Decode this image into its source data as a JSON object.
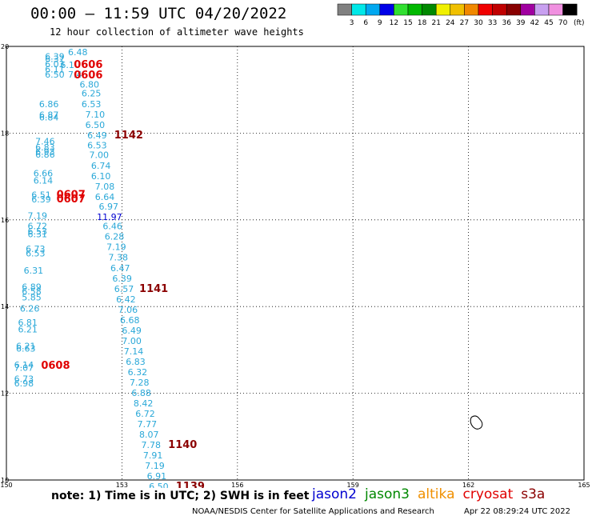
{
  "header": {
    "title": "00:00 – 11:59 UTC 04/20/2022",
    "subtitle": "12 hour collection of altimeter wave heights"
  },
  "legend": {
    "unit": "(ft)",
    "bins": [
      {
        "label": "3",
        "color": "#808080"
      },
      {
        "label": "6",
        "color": "#00e8e8"
      },
      {
        "label": "9",
        "color": "#00a8f0"
      },
      {
        "label": "12",
        "color": "#0000e8"
      },
      {
        "label": "15",
        "color": "#30e030"
      },
      {
        "label": "18",
        "color": "#00b800"
      },
      {
        "label": "21",
        "color": "#008800"
      },
      {
        "label": "24",
        "color": "#f0f000"
      },
      {
        "label": "27",
        "color": "#f0c000"
      },
      {
        "label": "30",
        "color": "#f08800"
      },
      {
        "label": "33",
        "color": "#f00000"
      },
      {
        "label": "36",
        "color": "#c00000"
      },
      {
        "label": "39",
        "color": "#880000"
      },
      {
        "label": "42",
        "color": "#a000a0"
      },
      {
        "label": "45",
        "color": "#c8a0f0"
      },
      {
        "label": "70",
        "color": "#f090e0"
      },
      {
        "label": "",
        "color": "#000000"
      }
    ]
  },
  "map": {
    "lon_ticks": [
      "150",
      "153",
      "156",
      "159",
      "162",
      "165"
    ],
    "lat_ticks": [
      "20",
      "18",
      "16",
      "14",
      "12",
      "10"
    ],
    "lon_range": [
      150,
      165
    ],
    "lat_range": [
      10,
      20
    ],
    "island_lon": 162.2,
    "island_lat": 11.3,
    "colors": {
      "wave": "#2aa8d8",
      "wave_blue": "#0000d0",
      "cryosat": "#e00000",
      "s3a": "#8b0000"
    },
    "wave_labels": [
      {
        "t": "6.48",
        "lon": 151.6,
        "lat": 19.8
      },
      {
        "t": "6.39",
        "lon": 151.0,
        "lat": 19.7
      },
      {
        "t": "6.37",
        "lon": 151.0,
        "lat": 19.64
      },
      {
        "t": "6.03",
        "lon": 151.0,
        "lat": 19.52
      },
      {
        "t": "6.1",
        "lon": 151.4,
        "lat": 19.5
      },
      {
        "t": "6.11",
        "lon": 151.0,
        "lat": 19.4
      },
      {
        "t": "6.50",
        "lon": 151.0,
        "lat": 19.28
      },
      {
        "t": "7.4",
        "lon": 151.6,
        "lat": 19.28
      },
      {
        "t": "6.80",
        "lon": 151.9,
        "lat": 19.05
      },
      {
        "t": "6.25",
        "lon": 151.95,
        "lat": 18.85
      },
      {
        "t": "6.86",
        "lon": 150.85,
        "lat": 18.6
      },
      {
        "t": "6.53",
        "lon": 151.95,
        "lat": 18.6
      },
      {
        "t": "6.87",
        "lon": 150.85,
        "lat": 18.35
      },
      {
        "t": "6.84",
        "lon": 150.85,
        "lat": 18.29
      },
      {
        "t": "7.10",
        "lon": 152.05,
        "lat": 18.36
      },
      {
        "t": "6.50",
        "lon": 152.05,
        "lat": 18.12
      },
      {
        "t": "6.49",
        "lon": 152.1,
        "lat": 17.88
      },
      {
        "t": "7.46",
        "lon": 150.75,
        "lat": 17.74
      },
      {
        "t": "6.53",
        "lon": 152.1,
        "lat": 17.65
      },
      {
        "t": "6.83",
        "lon": 150.75,
        "lat": 17.6
      },
      {
        "t": "6.93",
        "lon": 150.75,
        "lat": 17.5
      },
      {
        "t": "6.86",
        "lon": 150.75,
        "lat": 17.44
      },
      {
        "t": "7.00",
        "lon": 152.15,
        "lat": 17.43
      },
      {
        "t": "6.74",
        "lon": 152.2,
        "lat": 17.18
      },
      {
        "t": "6.66",
        "lon": 150.7,
        "lat": 17.0
      },
      {
        "t": "6.10",
        "lon": 152.2,
        "lat": 16.94
      },
      {
        "t": "6.14",
        "lon": 150.7,
        "lat": 16.84
      },
      {
        "t": "7.08",
        "lon": 152.3,
        "lat": 16.7
      },
      {
        "t": "6.51",
        "lon": 150.65,
        "lat": 16.5
      },
      {
        "t": "6.64",
        "lon": 152.3,
        "lat": 16.46
      },
      {
        "t": "6.39",
        "lon": 150.65,
        "lat": 16.4
      },
      {
        "t": "6.97",
        "lon": 152.4,
        "lat": 16.24
      },
      {
        "t": "7.19",
        "lon": 150.55,
        "lat": 16.02
      },
      {
        "t": "6.72",
        "lon": 150.55,
        "lat": 15.78
      },
      {
        "t": "6.46",
        "lon": 152.5,
        "lat": 15.78
      },
      {
        "t": "6.53",
        "lon": 150.55,
        "lat": 15.66
      },
      {
        "t": "6.31",
        "lon": 150.55,
        "lat": 15.6
      },
      {
        "t": "6.28",
        "lon": 152.55,
        "lat": 15.54
      },
      {
        "t": "7.19",
        "lon": 152.6,
        "lat": 15.3
      },
      {
        "t": "6.73",
        "lon": 150.5,
        "lat": 15.26
      },
      {
        "t": "6.53",
        "lon": 150.5,
        "lat": 15.16
      },
      {
        "t": "7.38",
        "lon": 152.65,
        "lat": 15.06
      },
      {
        "t": "6.47",
        "lon": 152.7,
        "lat": 14.82
      },
      {
        "t": "6.31",
        "lon": 150.45,
        "lat": 14.76
      },
      {
        "t": "6.39",
        "lon": 152.75,
        "lat": 14.58
      },
      {
        "t": "6.89",
        "lon": 150.4,
        "lat": 14.38
      },
      {
        "t": "6.57",
        "lon": 152.8,
        "lat": 14.34
      },
      {
        "t": "6.58",
        "lon": 150.4,
        "lat": 14.28
      },
      {
        "t": "5.85",
        "lon": 150.4,
        "lat": 14.14
      },
      {
        "t": "6.42",
        "lon": 152.85,
        "lat": 14.1
      },
      {
        "t": "6.26",
        "lon": 150.35,
        "lat": 13.88
      },
      {
        "t": "7.06",
        "lon": 152.9,
        "lat": 13.86
      },
      {
        "t": "6.68",
        "lon": 152.95,
        "lat": 13.62
      },
      {
        "t": "6.81",
        "lon": 150.3,
        "lat": 13.56
      },
      {
        "t": "6.49",
        "lon": 153.0,
        "lat": 13.38
      },
      {
        "t": "6.21",
        "lon": 150.3,
        "lat": 13.4
      },
      {
        "t": "7.00",
        "lon": 153.0,
        "lat": 13.14
      },
      {
        "t": "6.21",
        "lon": 150.25,
        "lat": 13.02
      },
      {
        "t": "6.63",
        "lon": 150.25,
        "lat": 12.96
      },
      {
        "t": "7.14",
        "lon": 153.05,
        "lat": 12.9
      },
      {
        "t": "6.83",
        "lon": 153.1,
        "lat": 12.66
      },
      {
        "t": "6.14",
        "lon": 150.2,
        "lat": 12.58
      },
      {
        "t": "7.07",
        "lon": 150.2,
        "lat": 12.52
      },
      {
        "t": "6.32",
        "lon": 153.15,
        "lat": 12.42
      },
      {
        "t": "6.73",
        "lon": 150.2,
        "lat": 12.26
      },
      {
        "t": "6.98",
        "lon": 150.2,
        "lat": 12.16
      },
      {
        "t": "7.28",
        "lon": 153.2,
        "lat": 12.18
      },
      {
        "t": "6.88",
        "lon": 153.25,
        "lat": 11.94
      },
      {
        "t": "8.42",
        "lon": 153.3,
        "lat": 11.7
      },
      {
        "t": "6.72",
        "lon": 153.35,
        "lat": 11.46
      },
      {
        "t": "7.77",
        "lon": 153.4,
        "lat": 11.22
      },
      {
        "t": "8.07",
        "lon": 153.45,
        "lat": 10.98
      },
      {
        "t": "7.78",
        "lon": 153.5,
        "lat": 10.74
      },
      {
        "t": "7.91",
        "lon": 153.55,
        "lat": 10.5
      },
      {
        "t": "7.19",
        "lon": 153.6,
        "lat": 10.26
      },
      {
        "t": "6.91",
        "lon": 153.65,
        "lat": 10.02
      },
      {
        "t": "6.50",
        "lon": 153.7,
        "lat": 9.78
      }
    ],
    "blue_labels": [
      {
        "t": "11.97",
        "lon": 152.35,
        "lat": 16.0
      }
    ],
    "pass_labels": [
      {
        "t": "0606",
        "lon": 151.75,
        "lat": 19.5,
        "c": "cryosat"
      },
      {
        "t": "0606",
        "lon": 151.75,
        "lat": 19.26,
        "c": "cryosat"
      },
      {
        "t": "1142",
        "lon": 152.8,
        "lat": 17.88,
        "c": "s3a"
      },
      {
        "t": "0607",
        "lon": 151.3,
        "lat": 16.5,
        "c": "cryosat"
      },
      {
        "t": "0607",
        "lon": 151.3,
        "lat": 16.4,
        "c": "cryosat"
      },
      {
        "t": "1141",
        "lon": 153.45,
        "lat": 14.34,
        "c": "s3a"
      },
      {
        "t": "0608",
        "lon": 150.9,
        "lat": 12.56,
        "c": "cryosat"
      },
      {
        "t": "1140",
        "lon": 154.2,
        "lat": 10.74,
        "c": "s3a"
      },
      {
        "t": "1139",
        "lon": 154.4,
        "lat": 9.78,
        "c": "s3a"
      }
    ]
  },
  "footer": {
    "note": "note: 1) Time is in UTC; 2) SWH is in feet",
    "satellites": [
      {
        "name": "jason2",
        "color": "#0000d0"
      },
      {
        "name": "jason3",
        "color": "#008800"
      },
      {
        "name": "altika",
        "color": "#f09000"
      },
      {
        "name": "cryosat",
        "color": "#e00000"
      },
      {
        "name": "s3a",
        "color": "#8b0000"
      }
    ],
    "credit": "NOAA/NESDIS Center for Satellite Applications and Research",
    "generated": "Apr 22 08:29:24 UTC 2022"
  }
}
